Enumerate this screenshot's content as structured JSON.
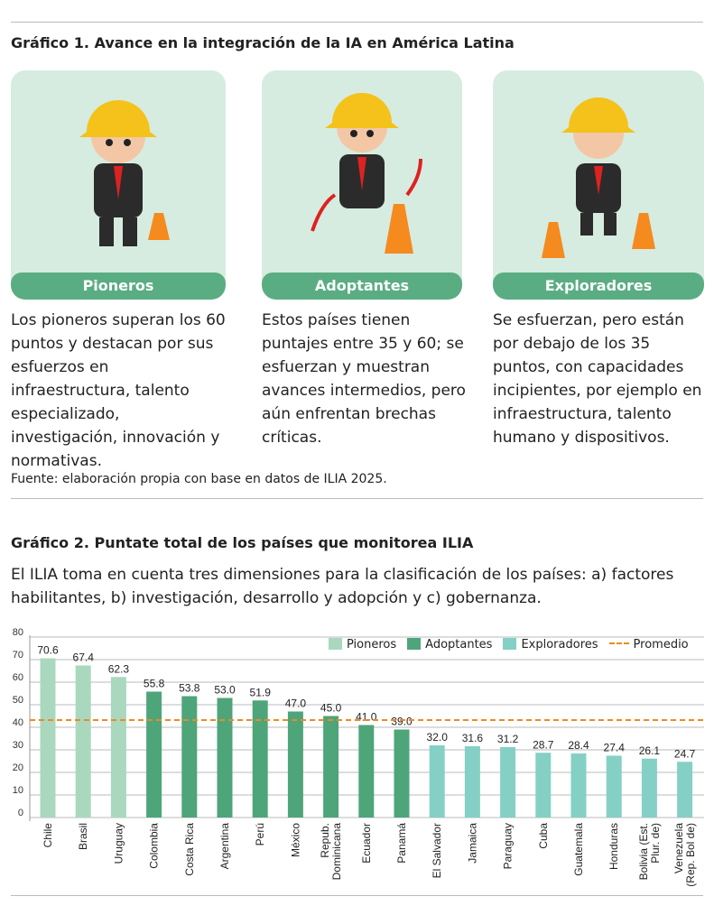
{
  "figure1": {
    "title": "Gráfico 1. Avance en la integración de la IA en América Latina",
    "cards": [
      {
        "label": "Pioneros",
        "illustration": "worker-ok-gesture-icon",
        "description": "Los pioneros superan los 60 puntos y destacan por sus esfuerzos en infraestructura, talento especializado, investigación, innovación y normativas."
      },
      {
        "label": "Adoptantes",
        "illustration": "worker-jumping-icon",
        "description": "Estos países tienen puntajes entre 35 y 60; se esfuerzan y muestran avances intermedios, pero aún enfrentan brechas críticas."
      },
      {
        "label": "Exploradores",
        "illustration": "worker-binoculars-icon",
        "description": "Se esfuerzan, pero están por debajo de los 35 puntos, con capacidades incipientes, por ejemplo en infraestructura, talento humano y dispositivos."
      }
    ],
    "source": "Fuente: elaboración propia con base en datos de ILIA 2025."
  },
  "figure2": {
    "title": "Gráfico 2. Puntate total de los países que monitorea ILIA",
    "intro": "El ILIA toma en cuenta tres dimensiones para la clasificación de los países: a) factores habilitantes, b) investigación, desarrollo y adopción y c) gobernanza."
  },
  "chart_data": {
    "type": "bar",
    "title": "",
    "xlabel": "",
    "ylabel": "",
    "ylim": [
      0,
      80
    ],
    "yticks": [
      0,
      10,
      20,
      30,
      40,
      50,
      60,
      70,
      80
    ],
    "grid": true,
    "legend_placement": "top-right",
    "categories": [
      "Chile",
      "Brasil",
      "Uruguay",
      "Colombia",
      "Costa Rica",
      "Argentina",
      "Perú",
      "México",
      "Repub. Dominicana",
      "Ecuador",
      "Panamá",
      "El Salvador",
      "Jamaica",
      "Paraguay",
      "Cuba",
      "Guatemala",
      "Honduras",
      "Bolivia (Est. Plur. de)",
      "Venezuela (Rep. Bol de)"
    ],
    "category_lines": [
      [
        "Chile"
      ],
      [
        "Brasil"
      ],
      [
        "Uruguay"
      ],
      [
        "Colombia"
      ],
      [
        "Costa Rica"
      ],
      [
        "Argentina"
      ],
      [
        "Perú"
      ],
      [
        "México"
      ],
      [
        "Repub.",
        "Dominicana"
      ],
      [
        "Ecuador"
      ],
      [
        "Panamá"
      ],
      [
        "El Salvador"
      ],
      [
        "Jamaica"
      ],
      [
        "Paraguay"
      ],
      [
        "Cuba"
      ],
      [
        "Guatemala"
      ],
      [
        "Honduras"
      ],
      [
        "Bolivia (Est.",
        "Plur. de)"
      ],
      [
        "Venezuela",
        "(Rep. Bol de)"
      ]
    ],
    "values": [
      70.6,
      67.4,
      62.3,
      55.8,
      53.8,
      53.0,
      51.9,
      47.0,
      45.0,
      41.0,
      39.0,
      32.0,
      31.6,
      31.2,
      28.7,
      28.4,
      27.4,
      26.1,
      24.7
    ],
    "value_labels": [
      "70.6",
      "67.4",
      "62.3",
      "55.8",
      "53.8",
      "53.0",
      "51.9",
      "47.0",
      "45.0",
      "41.0",
      "39.0",
      "32.0",
      "31.6",
      "31.2",
      "28.7",
      "28.4",
      "27.4",
      "26.1",
      "24.7"
    ],
    "groups": [
      "Pioneros",
      "Pioneros",
      "Pioneros",
      "Adoptantes",
      "Adoptantes",
      "Adoptantes",
      "Adoptantes",
      "Adoptantes",
      "Adoptantes",
      "Adoptantes",
      "Adoptantes",
      "Exploradores",
      "Exploradores",
      "Exploradores",
      "Exploradores",
      "Exploradores",
      "Exploradores",
      "Exploradores",
      "Exploradores"
    ],
    "series": [
      {
        "name": "Pioneros",
        "color": "#a9d8be"
      },
      {
        "name": "Adoptantes",
        "color": "#4ea57a"
      },
      {
        "name": "Exploradores",
        "color": "#84d0c5"
      }
    ],
    "average": {
      "name": "Promedio",
      "value": 43.2,
      "color": "#f08a1c"
    }
  }
}
